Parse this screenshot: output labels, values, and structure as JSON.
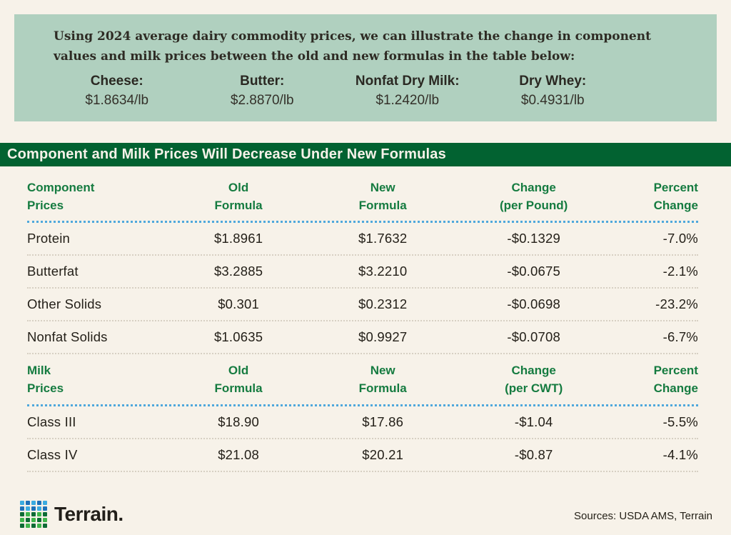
{
  "page": {
    "background": "#F7F2E9"
  },
  "intro_box": {
    "background": "#B0D0BF",
    "text": "Using 2024 average dairy commodity prices, we can illustrate the change in component values and milk prices between the old and new formulas in the table below:",
    "commodities": [
      {
        "label": "Cheese:",
        "value": "$1.8634/lb"
      },
      {
        "label": "Butter:",
        "value": "$2.8870/lb"
      },
      {
        "label": "Nonfat Dry Milk:",
        "value": "$1.2420/lb"
      },
      {
        "label": "Dry Whey:",
        "value": "$0.4931/lb"
      }
    ]
  },
  "banner": {
    "title": "Component and Milk Prices Will Decrease Under New Formulas",
    "background": "#026231",
    "text_color": "#F7F2E9"
  },
  "table": {
    "header_text_color": "#157B40",
    "divider_blue": "#4FA8DC",
    "divider_gray": "#D7D0C3",
    "sections": [
      {
        "headers": [
          {
            "line1": "Component",
            "line2": "Prices"
          },
          {
            "line1": "Old",
            "line2": "Formula"
          },
          {
            "line1": "New",
            "line2": "Formula"
          },
          {
            "line1": "Change",
            "line2": "(per Pound)"
          },
          {
            "line1": "Percent",
            "line2": "Change"
          }
        ],
        "rows": [
          {
            "cells": [
              "Protein",
              "$1.8961",
              "$1.7632",
              "-$0.1329",
              "-7.0%"
            ]
          },
          {
            "cells": [
              "Butterfat",
              "$3.2885",
              "$3.2210",
              "-$0.0675",
              "-2.1%"
            ]
          },
          {
            "cells": [
              "Other Solids",
              "$0.301",
              "$0.2312",
              "-$0.0698",
              "-23.2%"
            ]
          },
          {
            "cells": [
              "Nonfat Solids",
              "$1.0635",
              "$0.9927",
              "-$0.0708",
              "-6.7%"
            ]
          }
        ]
      },
      {
        "headers": [
          {
            "line1": "Milk",
            "line2": "Prices"
          },
          {
            "line1": "Old",
            "line2": "Formula"
          },
          {
            "line1": "New",
            "line2": "Formula"
          },
          {
            "line1": "Change",
            "line2": "(per CWT)"
          },
          {
            "line1": "Percent",
            "line2": "Change"
          }
        ],
        "rows": [
          {
            "cells": [
              "Class III",
              "$18.90",
              "$17.86",
              "-$1.04",
              "-5.5%"
            ]
          },
          {
            "cells": [
              "Class IV",
              "$21.08",
              "$20.21",
              "-$0.87",
              "-4.1%"
            ]
          }
        ]
      }
    ]
  },
  "footer": {
    "brand": "Terrain.",
    "sources": "Sources: USDA AMS, Terrain",
    "logo_colors": {
      "blue_light": "#3BABE0",
      "blue_dark": "#1C70B8",
      "green_light": "#3FB54B",
      "green_dark": "#0D6B35"
    }
  },
  "chart_data": {
    "type": "table",
    "title": "Component and Milk Prices Will Decrease Under New Formulas",
    "note": "Using 2024 average dairy commodity prices, we can illustrate the change in component values and milk prices between the old and new formulas in the table below:",
    "commodity_prices": {
      "Cheese": "$1.8634/lb",
      "Butter": "$2.8870/lb",
      "Nonfat Dry Milk": "$1.2420/lb",
      "Dry Whey": "$0.4931/lb"
    },
    "tables": [
      {
        "columns": [
          "Component Prices",
          "Old Formula",
          "New Formula",
          "Change (per Pound)",
          "Percent Change"
        ],
        "rows": [
          [
            "Protein",
            1.8961,
            1.7632,
            -0.1329,
            "-7.0%"
          ],
          [
            "Butterfat",
            3.2885,
            3.221,
            -0.0675,
            "-2.1%"
          ],
          [
            "Other Solids",
            0.301,
            0.2312,
            -0.0698,
            "-23.2%"
          ],
          [
            "Nonfat Solids",
            1.0635,
            0.9927,
            -0.0708,
            "-6.7%"
          ]
        ]
      },
      {
        "columns": [
          "Milk Prices",
          "Old Formula",
          "New Formula",
          "Change (per CWT)",
          "Percent Change"
        ],
        "rows": [
          [
            "Class III",
            18.9,
            17.86,
            -1.04,
            "-5.5%"
          ],
          [
            "Class IV",
            21.08,
            20.21,
            -0.87,
            "-4.1%"
          ]
        ]
      }
    ],
    "sources": "Sources: USDA AMS, Terrain"
  }
}
